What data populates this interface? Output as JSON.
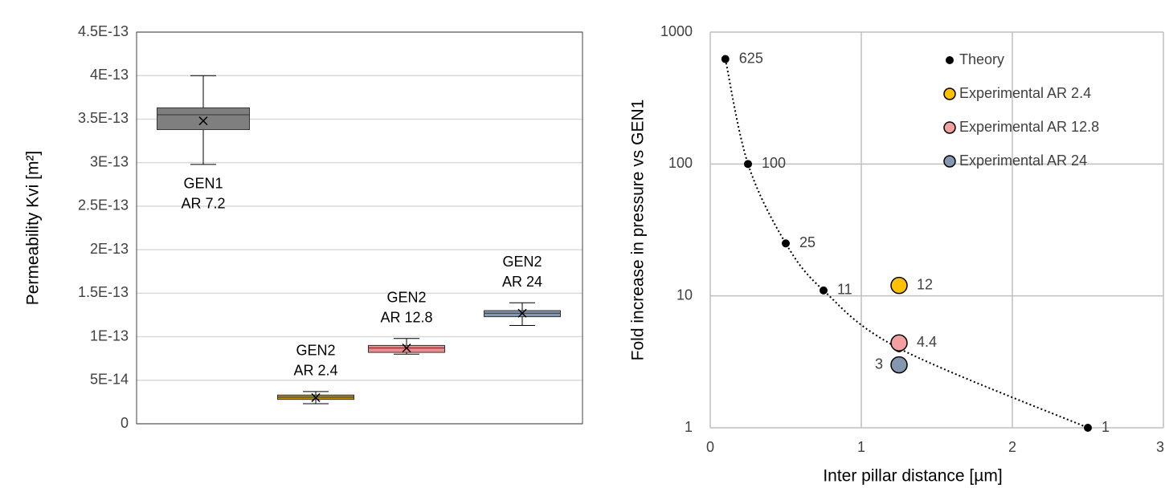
{
  "chart_data": [
    {
      "type": "box",
      "y_label": "Permeability Kvi [m²]",
      "ylim": [
        0,
        4.5e-13
      ],
      "yticks": [
        0,
        {
          "value": 5e-14,
          "label": "5E-14"
        },
        {
          "value": 1e-13,
          "label": "1E-13"
        },
        {
          "value": 1.5e-13,
          "label": "1.5E-13"
        },
        {
          "value": 2e-13,
          "label": "2E-13"
        },
        {
          "value": 2.5e-13,
          "label": "2.5E-13"
        },
        {
          "value": 3e-13,
          "label": "3E-13"
        },
        {
          "value": 3.5e-13,
          "label": "3.5E-13"
        },
        {
          "value": 4e-13,
          "label": "4E-13"
        },
        {
          "value": 4.5e-13,
          "label": "4.5E-13"
        }
      ],
      "grid": true,
      "boxes": [
        {
          "label": [
            "GEN1",
            "AR 7.2"
          ],
          "color": "#7f7f7f",
          "whisker_low": 2.98e-13,
          "q1": 3.38e-13,
          "median": 3.55e-13,
          "q3": 3.63e-13,
          "whisker_high": 4e-13,
          "mean": 3.48e-13
        },
        {
          "label": [
            "GEN2",
            "AR 2.4"
          ],
          "color": "#bf9000",
          "whisker_low": 2.3e-14,
          "q1": 2.8e-14,
          "median": 3.05e-14,
          "q3": 3.3e-14,
          "whisker_high": 3.7e-14,
          "mean": 3e-14
        },
        {
          "label": [
            "GEN2",
            "AR 12.8"
          ],
          "color": "#f08a8a",
          "whisker_low": 8e-14,
          "q1": 8.2e-14,
          "median": 8.7e-14,
          "q3": 9e-14,
          "whisker_high": 9.8e-14,
          "mean": 8.7e-14
        },
        {
          "label": [
            "GEN2",
            "AR 24"
          ],
          "color": "#8497b0",
          "whisker_low": 1.13e-13,
          "q1": 1.23e-13,
          "median": 1.27e-13,
          "q3": 1.3e-13,
          "whisker_high": 1.39e-13,
          "mean": 1.27e-13
        }
      ]
    },
    {
      "type": "scatter",
      "x_label": "Inter pillar distance [µm]",
      "y_label": "Fold increase in pressure vs GEN1",
      "xlim": [
        0,
        3
      ],
      "xticks": [
        0,
        1,
        2,
        3
      ],
      "ylim": [
        1,
        1000
      ],
      "yticks": [
        1,
        10,
        100,
        1000
      ],
      "log_y": true,
      "grid": true,
      "legend": "upper right",
      "series": [
        {
          "name": "Theory",
          "color": "#000000",
          "dotted_line": true,
          "x": [
            0.1,
            0.25,
            0.5,
            0.75,
            1.25,
            2.5
          ],
          "values": [
            625,
            100,
            25,
            11,
            4,
            1
          ],
          "value_labels": [
            "625",
            "100",
            "25",
            "11",
            null,
            "1"
          ]
        },
        {
          "name": "Experimental AR 2.4",
          "color": "#ffc000",
          "x": [
            1.25
          ],
          "values": [
            12
          ],
          "value_labels": [
            "12"
          ]
        },
        {
          "name": "Experimental AR 12.8",
          "color": "#f4a0a0",
          "x": [
            1.25
          ],
          "values": [
            4.4
          ],
          "value_labels": [
            "4.4"
          ]
        },
        {
          "name": "Experimental AR 24",
          "color": "#8497b0",
          "x": [
            1.25
          ],
          "values": [
            3
          ],
          "value_labels": [
            "3"
          ]
        }
      ]
    }
  ]
}
